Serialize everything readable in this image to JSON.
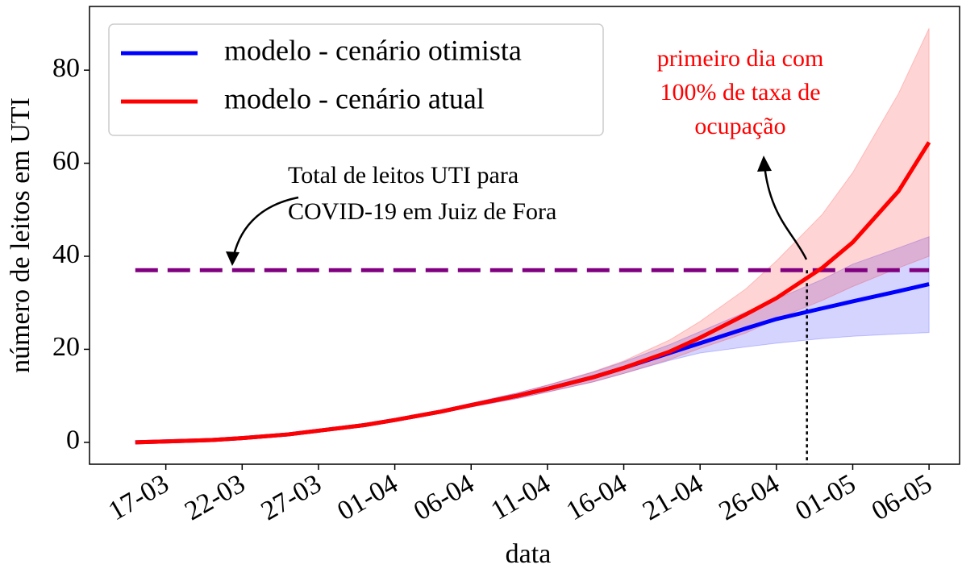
{
  "chart_data": {
    "type": "line",
    "xlabel": "data",
    "ylabel": "número de leitos em UTI",
    "x": [
      "15-03",
      "17-03",
      "20-03",
      "22-03",
      "25-03",
      "27-03",
      "30-03",
      "01-04",
      "04-04",
      "06-04",
      "09-04",
      "11-04",
      "14-04",
      "16-04",
      "19-04",
      "21-04",
      "24-04",
      "26-04",
      "29-04",
      "01-05",
      "04-05",
      "06-05"
    ],
    "series": [
      {
        "name": "modelo - cenário otimista",
        "color": "#0000ff",
        "values": [
          0,
          0.2,
          0.5,
          0.9,
          1.7,
          2.5,
          3.7,
          4.8,
          6.6,
          8.0,
          10.0,
          11.5,
          14.0,
          16.0,
          19.2,
          21.3,
          24.5,
          26.5,
          28.8,
          30.3,
          32.5,
          34
        ],
        "upper": [
          0,
          0.2,
          0.5,
          0.9,
          1.7,
          2.5,
          3.8,
          5.0,
          6.9,
          8.4,
          10.6,
          12.3,
          15.1,
          17.3,
          21.0,
          23.8,
          28.0,
          30.8,
          35.0,
          38.3,
          41.8,
          44.2
        ],
        "lower": [
          0,
          0.2,
          0.5,
          0.9,
          1.7,
          2.5,
          3.6,
          4.6,
          6.3,
          7.6,
          9.4,
          10.8,
          13.0,
          14.8,
          17.6,
          19.2,
          20.5,
          21.3,
          22.3,
          22.8,
          23.3,
          23.6
        ]
      },
      {
        "name": "modelo - cenário atual",
        "color": "#ff0000",
        "values": [
          0,
          0.2,
          0.5,
          0.9,
          1.7,
          2.5,
          3.7,
          4.8,
          6.6,
          8.0,
          10.0,
          11.5,
          14.0,
          16.0,
          19.5,
          22.5,
          27.5,
          31.0,
          37.5,
          43.0,
          54.0,
          64.5
        ],
        "upper": [
          0,
          0.2,
          0.5,
          0.9,
          1.7,
          2.5,
          3.8,
          5.0,
          6.9,
          8.4,
          10.6,
          12.3,
          15.2,
          17.5,
          22,
          26,
          33,
          39,
          49,
          58,
          75,
          89
        ],
        "lower": [
          0,
          0.2,
          0.5,
          0.9,
          1.7,
          2.5,
          3.6,
          4.6,
          6.3,
          7.6,
          9.4,
          10.8,
          13.0,
          14.8,
          17.8,
          20.2,
          23.5,
          26.5,
          30.5,
          33.5,
          37.5,
          40
        ]
      }
    ],
    "hline": {
      "value": 37,
      "color": "#800080"
    },
    "vline": {
      "x": "28-04"
    },
    "annotations": [
      {
        "lines": [
          "Total de leitos UTI para",
          "COVID-19 em Juiz de Fora"
        ],
        "color": "#000000"
      },
      {
        "lines": [
          "primeiro dia com",
          "100% de taxa de",
          "ocupação"
        ],
        "color": "#ff0000"
      }
    ],
    "xlim": [
      "12-03",
      "08-05"
    ],
    "xticks": [
      "17-03",
      "22-03",
      "27-03",
      "01-04",
      "06-04",
      "11-04",
      "16-04",
      "21-04",
      "26-04",
      "01-05",
      "06-05"
    ],
    "ylim": [
      -4.7,
      93.7
    ],
    "yticks": [
      0,
      20,
      40,
      60,
      80
    ],
    "legend": "upper left"
  }
}
